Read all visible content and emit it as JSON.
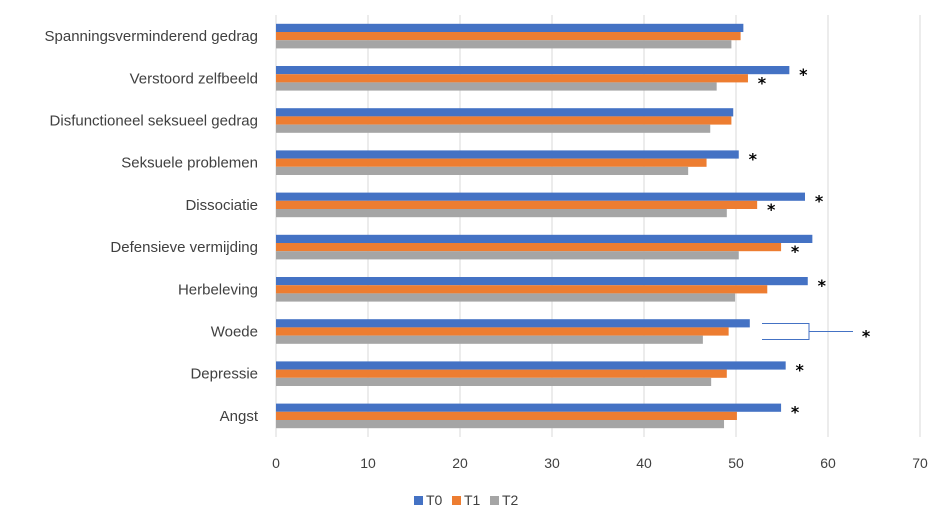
{
  "chart_data": {
    "type": "bar",
    "orientation": "horizontal",
    "categories": [
      "Spanningsverminderend gedrag",
      "Verstoord zelfbeeld",
      "Disfunctioneel seksueel gedrag",
      "Seksuele problemen",
      "Dissociatie",
      "Defensieve vermijding",
      "Herbeleving",
      "Woede",
      "Depressie",
      "Angst"
    ],
    "series": [
      {
        "name": "T0",
        "color": "#4472C4",
        "values": [
          50.8,
          55.8,
          49.7,
          50.3,
          57.5,
          58.3,
          57.8,
          51.5,
          55.4,
          54.9
        ]
      },
      {
        "name": "T1",
        "color": "#ED7D31",
        "values": [
          50.5,
          51.3,
          49.5,
          46.8,
          52.3,
          54.9,
          53.4,
          49.2,
          49.0,
          50.1
        ]
      },
      {
        "name": "T2",
        "color": "#A5A5A5",
        "values": [
          49.5,
          47.9,
          47.2,
          44.8,
          49.0,
          50.3,
          49.9,
          46.4,
          47.3,
          48.7
        ]
      }
    ],
    "xlim": [
      0,
      70
    ],
    "xticks": [
      "0",
      "10",
      "20",
      "30",
      "40",
      "50",
      "60",
      "70"
    ],
    "grid": "vertical",
    "legend_position": "bottom",
    "annotations": [
      {
        "text": "*",
        "category": "Verstoord zelfbeeld",
        "series": "T0"
      },
      {
        "text": "*",
        "category": "Verstoord zelfbeeld",
        "series": "T1"
      },
      {
        "text": "*",
        "category": "Seksuele problemen",
        "series": "T0"
      },
      {
        "text": "*",
        "category": "Dissociatie",
        "series": "T0"
      },
      {
        "text": "*",
        "category": "Dissociatie",
        "series": "T1"
      },
      {
        "text": "*",
        "category": "Defensieve vermijding",
        "series": "T1"
      },
      {
        "text": "*",
        "category": "Herbeleving",
        "series": "T0"
      },
      {
        "text": "*",
        "category": "Woede",
        "series": "bracket"
      },
      {
        "text": "*",
        "category": "Depressie",
        "series": "T0"
      },
      {
        "text": "*",
        "category": "Angst",
        "series": "T0"
      }
    ]
  }
}
